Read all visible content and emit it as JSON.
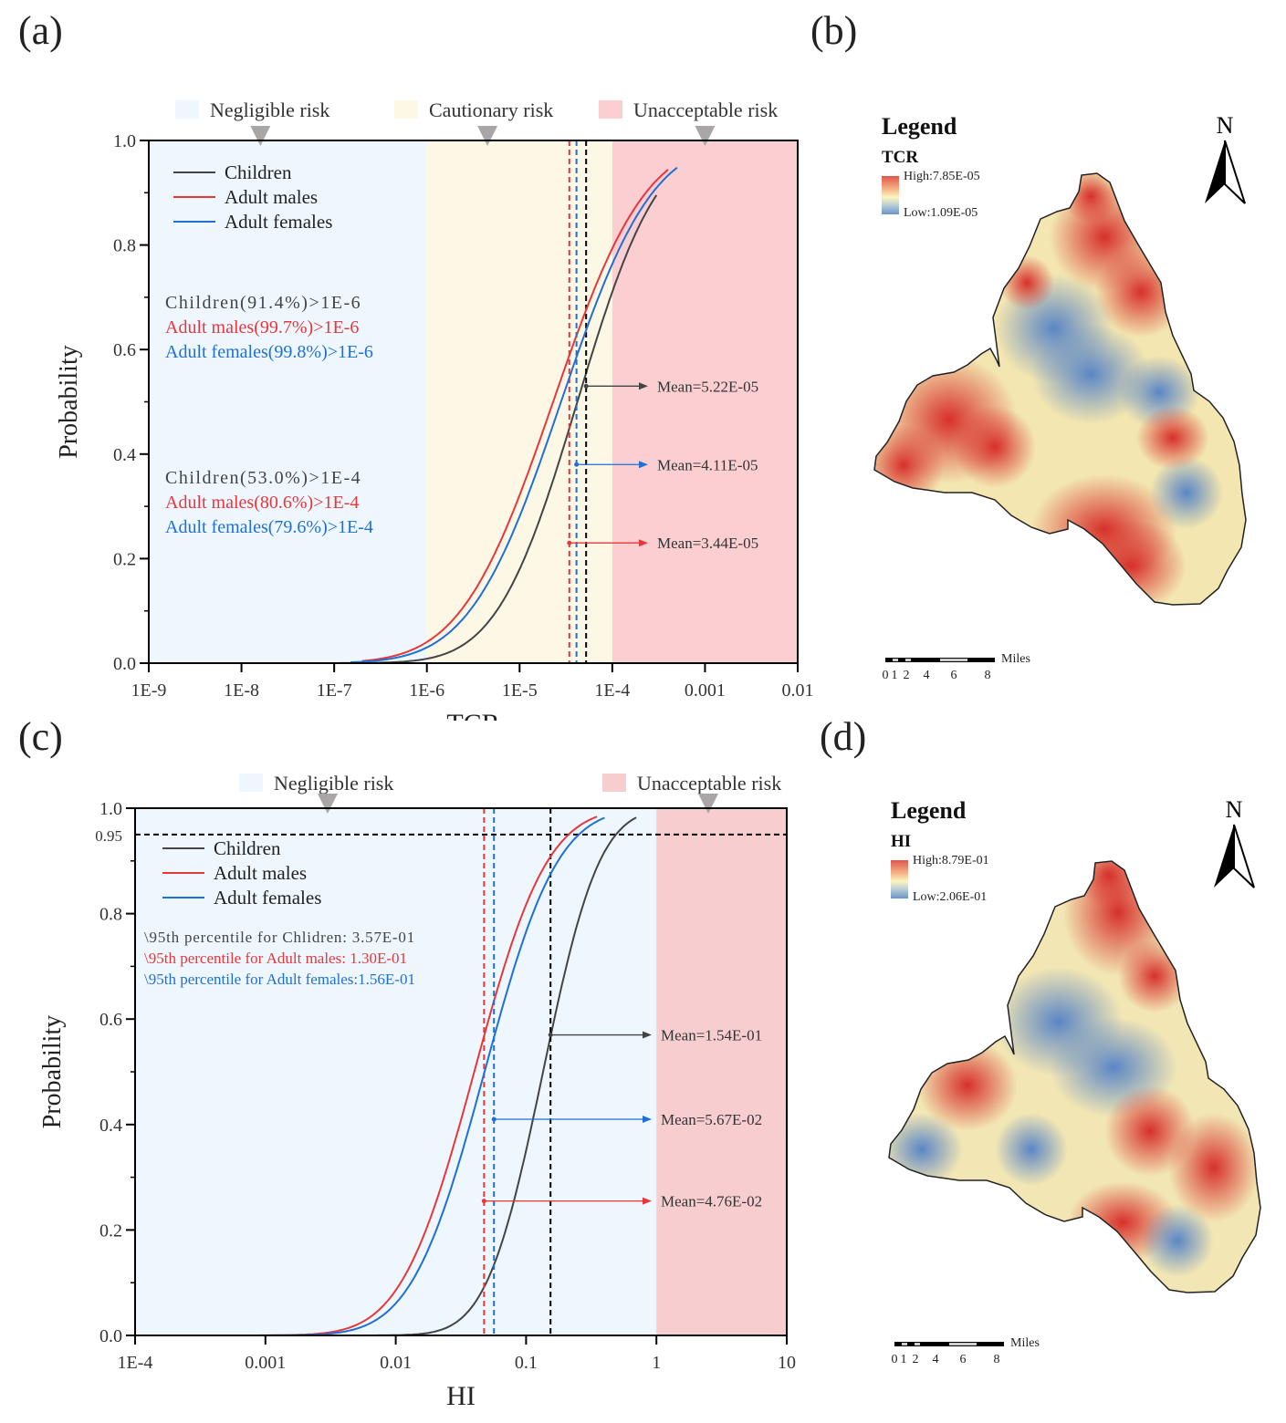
{
  "panels": {
    "a": "(a)",
    "b": "(b)",
    "c": "(c)",
    "d": "(d)"
  },
  "chart_data": [
    {
      "id": "a",
      "type": "line",
      "xscale": "log",
      "xlabel": "TCR",
      "ylabel": "Probability",
      "xlim": [
        1e-09,
        0.01
      ],
      "ylim": [
        0,
        1.0
      ],
      "xticks": [
        1e-09,
        1e-08,
        1e-07,
        1e-06,
        1e-05,
        0.0001,
        0.001,
        0.01
      ],
      "xtick_labels": [
        "1E-9",
        "1E-8",
        "1E-7",
        "1E-6",
        "1E-5",
        "1E-4",
        "0.001",
        "0.01"
      ],
      "yticks": [
        0,
        0.2,
        0.4,
        0.6,
        0.8,
        1.0
      ],
      "ytick_labels": [
        "0.0",
        "0.2",
        "0.4",
        "0.6",
        "0.8",
        "1.0"
      ],
      "zones": [
        {
          "label": "Negligible risk",
          "from": 1e-09,
          "to": 1e-06,
          "color": "#edf7fd",
          "marker_at": 1.6e-08
        },
        {
          "label": "Cautionary risk",
          "from": 1e-06,
          "to": 0.0001,
          "color": "#fdf8e6",
          "marker_at": 4.5e-06
        },
        {
          "label": "Unacceptable risk",
          "from": 0.0001,
          "to": 0.01,
          "color": "#fbcfd1",
          "marker_at": 0.001
        }
      ],
      "series": [
        {
          "name": "Children",
          "color": "#444444",
          "mean": 5.22e-05,
          "median": 4.2e-05,
          "sigma_dex": 0.68,
          "xmin": 2.5e-08,
          "xmax": 0.0003
        },
        {
          "name": "Adult males",
          "color": "#e8363b",
          "mean": 3.44e-05,
          "median": 2.3e-05,
          "sigma_dex": 0.78,
          "xmin": 2e-07,
          "xmax": 0.0004
        },
        {
          "name": "Adult females",
          "color": "#1f6fd6",
          "mean": 4.11e-05,
          "median": 2.8e-05,
          "sigma_dex": 0.77,
          "xmin": 1.5e-07,
          "xmax": 0.0005
        }
      ],
      "legend": [
        "Children",
        "Adult males",
        "Adult females"
      ],
      "legend_position": "top-left",
      "annotations_group1": [
        "Children(91.4%)>1E-6",
        "Adult  males(99.7%)>1E-6",
        "Adult females(99.8%)>1E-6"
      ],
      "annotations_group2": [
        "Children(53.0%)>1E-4",
        "Adult  males(80.6%)>1E-4",
        "Adult females(79.6%)>1E-4"
      ],
      "mean_labels": [
        {
          "text": "Mean=5.22E-05",
          "series": "Children",
          "y": 0.53
        },
        {
          "text": "Mean=4.11E-05",
          "series": "Adult females",
          "y": 0.38
        },
        {
          "text": "Mean=3.44E-05",
          "series": "Adult males",
          "y": 0.23
        }
      ]
    },
    {
      "id": "c",
      "type": "line",
      "xscale": "log",
      "xlabel": "HI",
      "ylabel": "Probability",
      "xlim": [
        0.0001,
        10
      ],
      "ylim": [
        0,
        1.0
      ],
      "xticks": [
        0.0001,
        0.001,
        0.01,
        0.1,
        1,
        10
      ],
      "xtick_labels": [
        "1E-4",
        "0.001",
        "0.01",
        "0.1",
        "1",
        "10"
      ],
      "yticks": [
        0,
        0.2,
        0.4,
        0.6,
        0.8,
        0.95,
        1.0
      ],
      "ytick_labels": [
        "0.0",
        "0.2",
        "0.4",
        "0.6",
        "0.8",
        "0.95",
        "1.0"
      ],
      "hline": 0.95,
      "zones": [
        {
          "label": "Negligible risk",
          "from": 0.0001,
          "to": 1,
          "color": "#edf7fd",
          "marker_at": 0.003
        },
        {
          "label": "Unacceptable risk",
          "from": 1,
          "to": 10,
          "color": "#f8cdd0",
          "marker_at": 2.5
        }
      ],
      "series": [
        {
          "name": "Children",
          "color": "#444444",
          "mean": 0.154,
          "median": 0.135,
          "sigma_dex": 0.34,
          "xmin": 0.0004,
          "xmax": 0.7
        },
        {
          "name": "Adult males",
          "color": "#e8363b",
          "mean": 0.0476,
          "median": 0.04,
          "sigma_dex": 0.44,
          "xmin": 0.0004,
          "xmax": 0.35
        },
        {
          "name": "Adult females",
          "color": "#1f6fd6",
          "mean": 0.0567,
          "median": 0.048,
          "sigma_dex": 0.44,
          "xmin": 0.00035,
          "xmax": 0.4
        }
      ],
      "legend": [
        "Children",
        "Adult males",
        "Adult females"
      ],
      "legend_position": "top-left",
      "annotations_group1": [
        "\\95th percentile for Chlidren: 3.57E-01",
        "\\95th percentile for Adult males:  1.30E-01",
        "\\95th percentile for Adult females:1.56E-01"
      ],
      "mean_labels": [
        {
          "text": "Mean=1.54E-01",
          "series": "Children",
          "y": 0.57
        },
        {
          "text": "Mean=5.67E-02",
          "series": "Adult females",
          "y": 0.41
        },
        {
          "text": "Mean=4.76E-02",
          "series": "Adult males",
          "y": 0.255
        }
      ]
    }
  ],
  "maps": [
    {
      "id": "b",
      "legend_title": "Legend",
      "variable": "TCR",
      "high": "High:7.85E-05",
      "low": "Low:1.09E-05",
      "north": "N",
      "scale_unit": "Miles",
      "scale_ticks": [
        "0",
        "1",
        "2",
        "4",
        "6",
        "8"
      ]
    },
    {
      "id": "d",
      "legend_title": "Legend",
      "variable": "HI",
      "high": "High:8.79E-01",
      "low": "Low:2.06E-01",
      "north": "N",
      "scale_unit": "Miles",
      "scale_ticks": [
        "0",
        "1",
        "2",
        "4",
        "6",
        "8"
      ]
    }
  ]
}
